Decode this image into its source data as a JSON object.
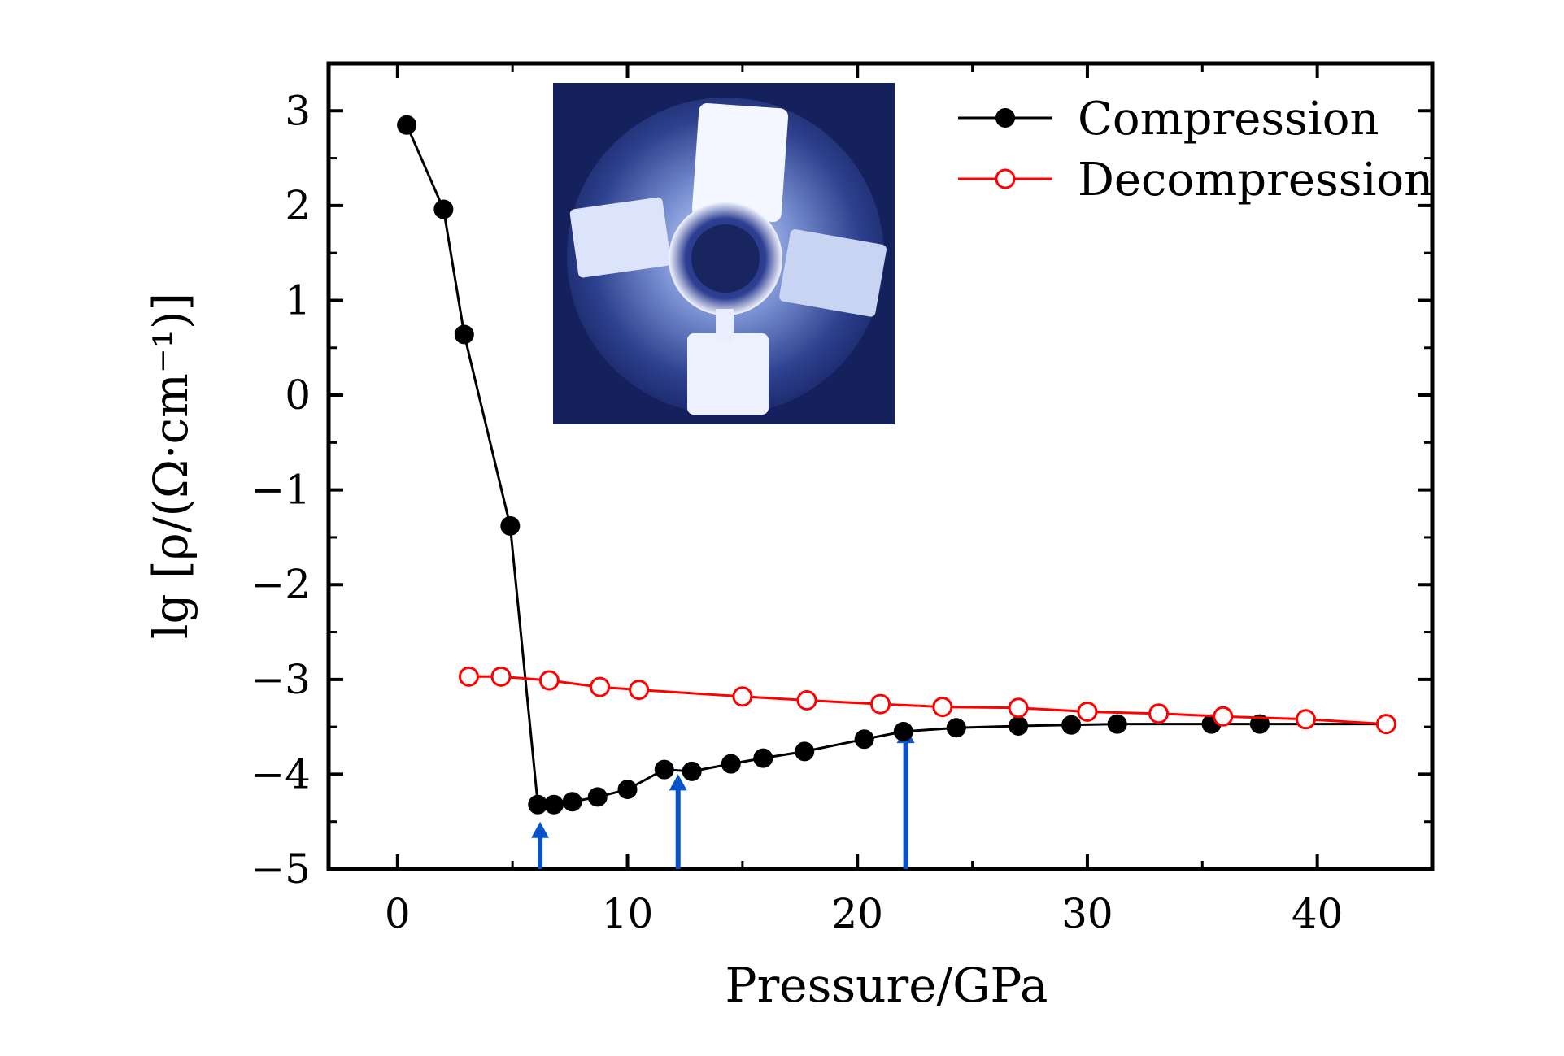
{
  "chart_data": {
    "type": "line",
    "title": "",
    "xlabel": "Pressure/GPa",
    "ylabel": "lg [ρ/(Ω·cm⁻¹)]",
    "xlim": [
      -3,
      45
    ],
    "ylim": [
      -5,
      3.5
    ],
    "x_ticks": [
      0,
      10,
      20,
      30,
      40
    ],
    "x_tick_labels": [
      "0",
      "10",
      "20",
      "30",
      "40"
    ],
    "y_ticks": [
      3,
      2,
      1,
      0,
      -1,
      -2,
      -3,
      -4,
      -5
    ],
    "y_tick_labels": [
      "3",
      "2",
      "1",
      "0",
      "−1",
      "−2",
      "−3",
      "−4",
      "−5"
    ],
    "legend_position": "top-right",
    "series": [
      {
        "name": "Compression",
        "marker": "filled-circle",
        "color": "#000000",
        "x": [
          0.4,
          2.0,
          2.9,
          4.9,
          6.1,
          6.8,
          7.6,
          8.7,
          10.0,
          11.6,
          12.8,
          14.5,
          15.9,
          17.7,
          20.3,
          22.0,
          24.3,
          27.0,
          29.3,
          31.3,
          35.4,
          37.5,
          43.0
        ],
        "y": [
          2.85,
          1.96,
          0.64,
          -1.38,
          -4.32,
          -4.32,
          -4.29,
          -4.24,
          -4.16,
          -3.95,
          -3.97,
          -3.89,
          -3.83,
          -3.76,
          -3.63,
          -3.55,
          -3.51,
          -3.49,
          -3.48,
          -3.47,
          -3.47,
          -3.47,
          -3.47
        ]
      },
      {
        "name": "Decompression",
        "marker": "open-circle",
        "color": "#ff0000",
        "x": [
          3.1,
          4.5,
          6.6,
          8.8,
          10.5,
          15.0,
          17.8,
          21.0,
          23.7,
          27.0,
          30.0,
          33.1,
          35.9,
          39.5,
          43.0
        ],
        "y": [
          -2.97,
          -2.97,
          -3.01,
          -3.08,
          -3.11,
          -3.18,
          -3.22,
          -3.26,
          -3.29,
          -3.3,
          -3.34,
          -3.36,
          -3.39,
          -3.42,
          -3.47
        ]
      }
    ],
    "arrows": {
      "color": "#0a52c7",
      "x": [
        6.2,
        12.2,
        22.1
      ],
      "y_tip": [
        -4.5,
        -4.0,
        -3.5
      ]
    },
    "inset_photo": "high-pressure-cell-micrograph-icon"
  }
}
